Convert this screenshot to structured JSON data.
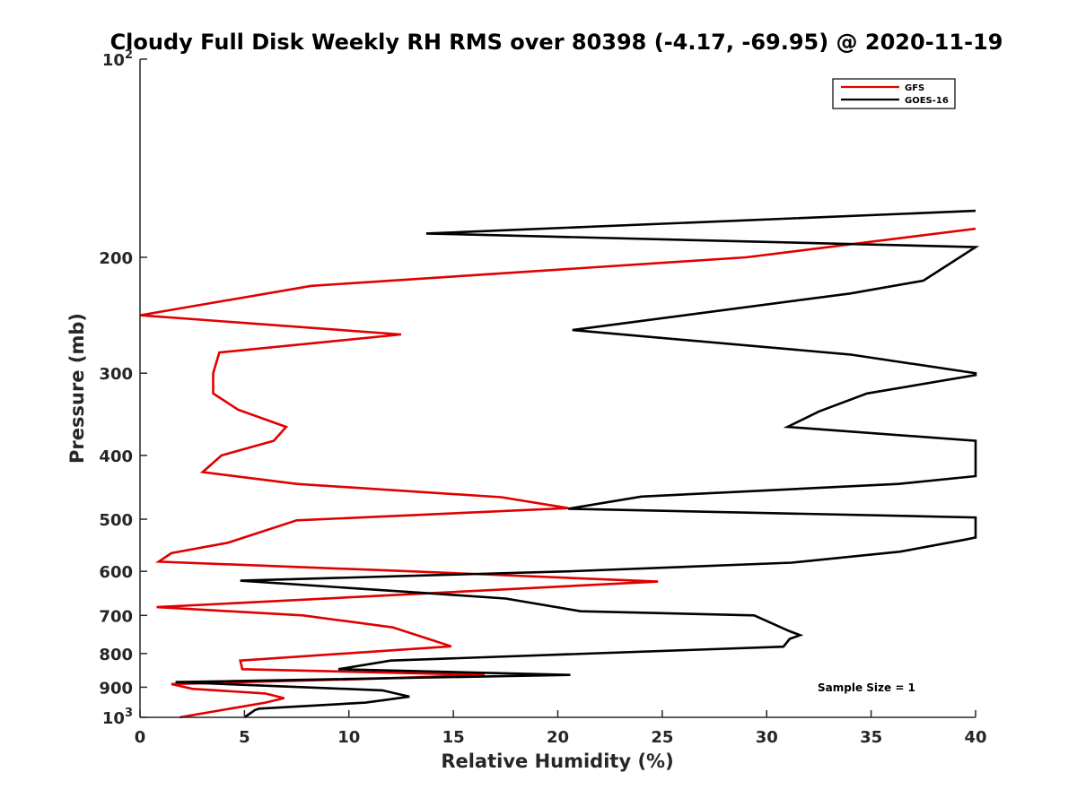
{
  "chart_data": {
    "type": "line",
    "title": "Cloudy Full Disk Weekly RH RMS over 80398 (-4.17, -69.95) @ 2020-11-19",
    "xlabel": "Relative Humidity (%)",
    "ylabel": "Pressure (mb)",
    "xlim": [
      0,
      40
    ],
    "ylim": [
      100,
      1000
    ],
    "yscale": "log",
    "y_reversed": true,
    "x_ticks": [
      0,
      5,
      10,
      15,
      20,
      25,
      30,
      35,
      40
    ],
    "x_tick_labels": [
      "0",
      "5",
      "10",
      "15",
      "20",
      "25",
      "30",
      "35",
      "40"
    ],
    "y_ticks": [
      100,
      200,
      300,
      400,
      500,
      600,
      700,
      800,
      900,
      1000
    ],
    "y_tick_labels": [
      {
        "base": "10",
        "exp": "2"
      },
      {
        "base": "200"
      },
      {
        "base": "300"
      },
      {
        "base": "400"
      },
      {
        "base": "500"
      },
      {
        "base": "600"
      },
      {
        "base": "700"
      },
      {
        "base": "800"
      },
      {
        "base": "900"
      },
      {
        "base": "10",
        "exp": "3"
      }
    ],
    "grid": false,
    "legend_position": "top-right",
    "annotation": "Sample Size = 1",
    "series": [
      {
        "name": "GFS",
        "color": "#e00000",
        "points": [
          [
            40,
            181
          ],
          [
            29,
            200
          ],
          [
            8.2,
            221
          ],
          [
            0,
            245
          ],
          [
            12.5,
            262
          ],
          [
            3.8,
            279
          ],
          [
            3.5,
            300
          ],
          [
            3.5,
            322
          ],
          [
            4.7,
            341
          ],
          [
            7,
            362
          ],
          [
            6.4,
            380
          ],
          [
            3.9,
            400
          ],
          [
            3,
            424
          ],
          [
            7.5,
            442
          ],
          [
            17.3,
            463
          ],
          [
            20.5,
            481
          ],
          [
            7.5,
            502
          ],
          [
            4.2,
            543
          ],
          [
            1.5,
            563
          ],
          [
            0.9,
            580
          ],
          [
            13,
            600
          ],
          [
            24.8,
            622
          ],
          [
            0.8,
            680
          ],
          [
            7.8,
            700
          ],
          [
            12.1,
            730
          ],
          [
            13.8,
            760
          ],
          [
            14.9,
            780
          ],
          [
            4.8,
            820
          ],
          [
            4.9,
            845
          ],
          [
            16.5,
            862
          ],
          [
            10.5,
            875
          ],
          [
            1.5,
            890
          ],
          [
            2.5,
            905
          ],
          [
            6,
            920
          ],
          [
            6.9,
            935
          ],
          [
            6,
            950
          ],
          [
            1.9,
            1000
          ]
        ]
      },
      {
        "name": "GOES-16",
        "color": "#000000",
        "points": [
          [
            40,
            170
          ],
          [
            13.7,
            184
          ],
          [
            40,
            193
          ],
          [
            37.5,
            217
          ],
          [
            34,
            227
          ],
          [
            20.7,
            258
          ],
          [
            34,
            281
          ],
          [
            40,
            300
          ],
          [
            40,
            302
          ],
          [
            34.8,
            322
          ],
          [
            32.5,
            343
          ],
          [
            31,
            362
          ],
          [
            40,
            380
          ],
          [
            40,
            430
          ],
          [
            36.3,
            442
          ],
          [
            24,
            462
          ],
          [
            20.5,
            482
          ],
          [
            40,
            497
          ],
          [
            40,
            533
          ],
          [
            39.5,
            537
          ],
          [
            36.4,
            560
          ],
          [
            31.2,
            582
          ],
          [
            20.5,
            600
          ],
          [
            4.8,
            620
          ],
          [
            14.5,
            650
          ],
          [
            17.5,
            660
          ],
          [
            21.1,
            690
          ],
          [
            29.4,
            700
          ],
          [
            31.1,
            740
          ],
          [
            31.6,
            750
          ],
          [
            31.1,
            760
          ],
          [
            30.8,
            781
          ],
          [
            12,
            820
          ],
          [
            9.5,
            845
          ],
          [
            20.6,
            862
          ],
          [
            1.7,
            884
          ],
          [
            11.6,
            910
          ],
          [
            12.9,
            930
          ],
          [
            10.8,
            950
          ],
          [
            5.7,
            970
          ],
          [
            5.5,
            975
          ],
          [
            5,
            1000
          ]
        ]
      }
    ]
  }
}
